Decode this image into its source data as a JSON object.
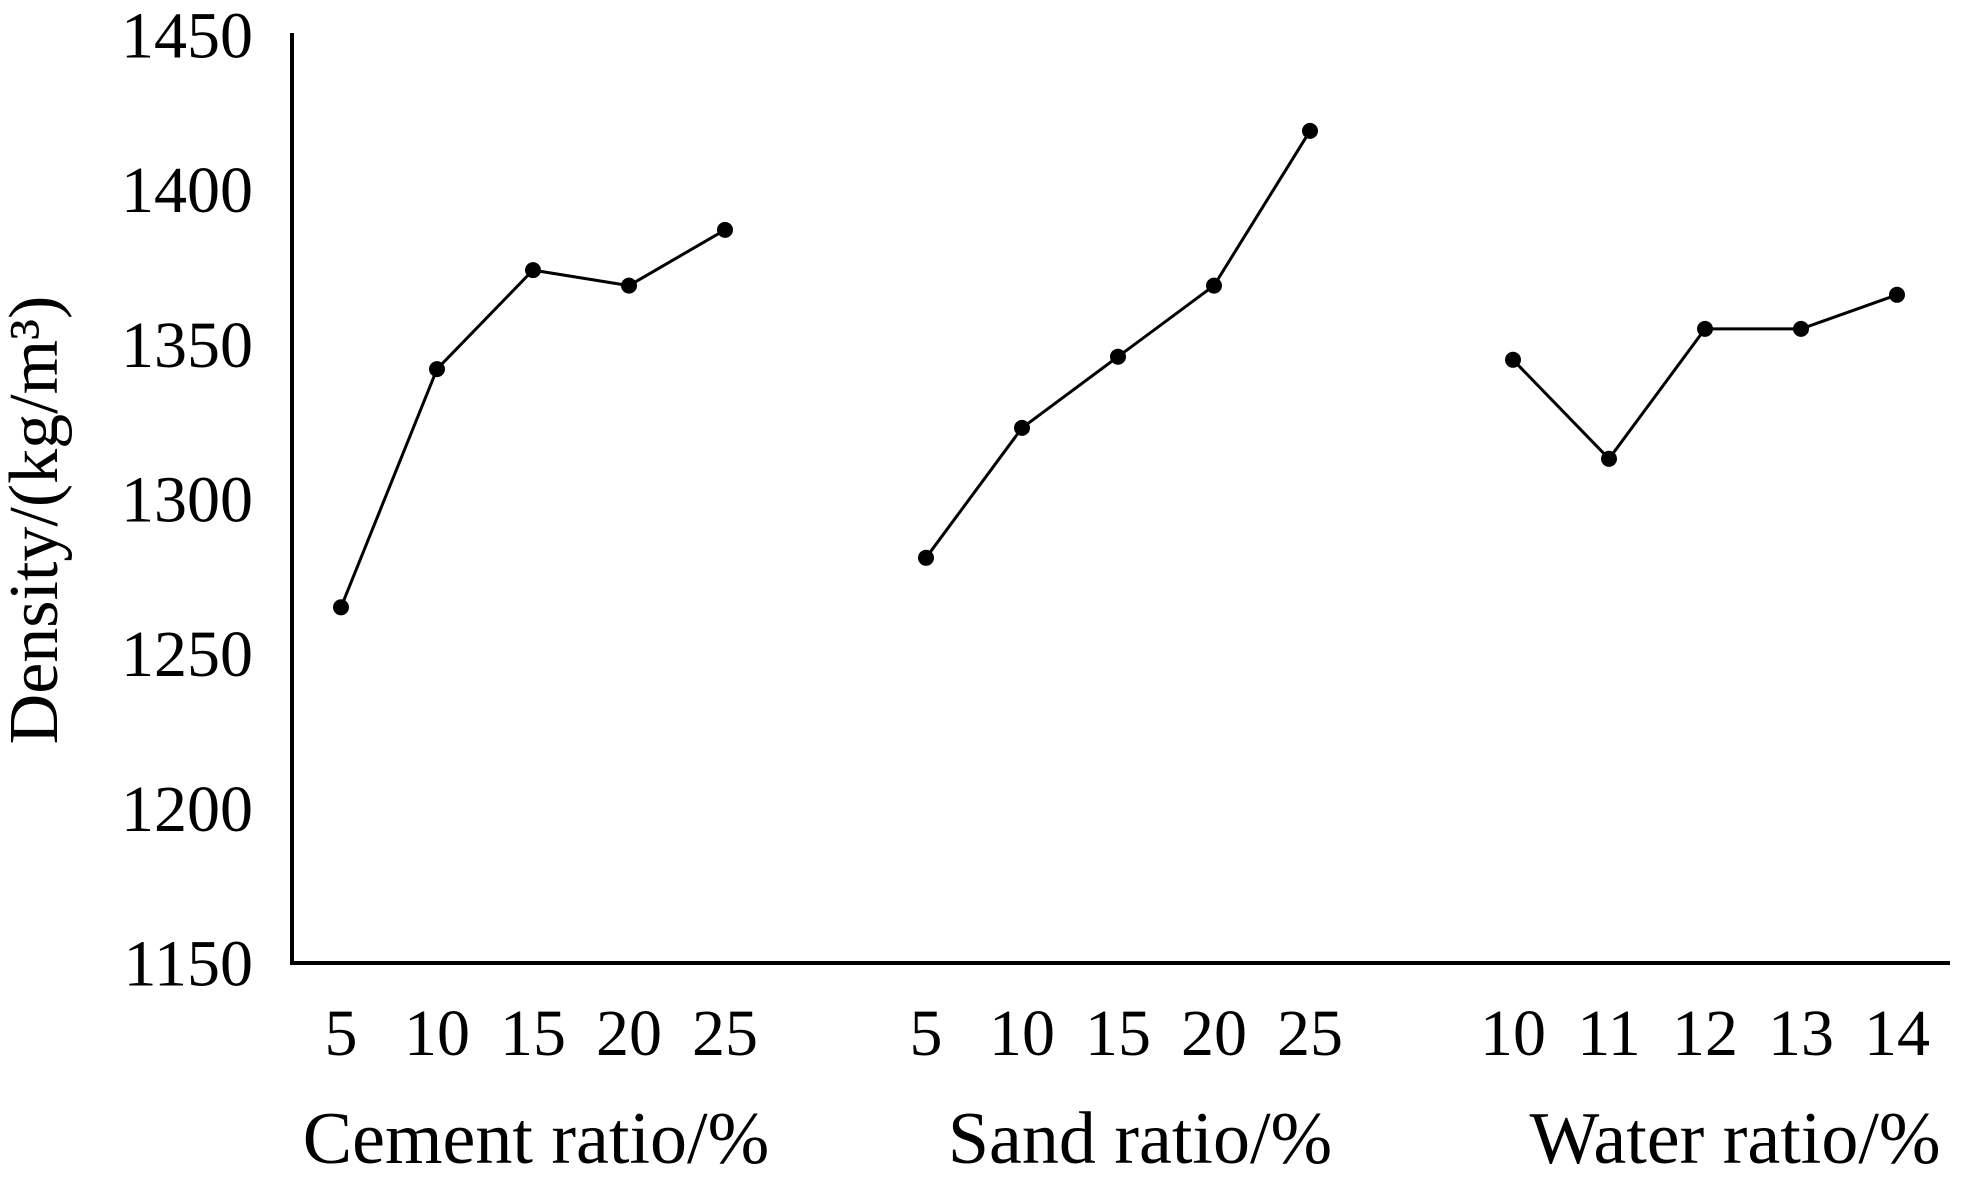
{
  "figure": {
    "background": "#ffffff",
    "ink_color": "#000000"
  },
  "chart_data": {
    "type": "line",
    "title": "",
    "ylabel": "Density/(kg/m³)",
    "ylim": [
      1150,
      1450
    ],
    "ytick_step": 50,
    "yticks": [
      1150,
      1200,
      1250,
      1300,
      1350,
      1400,
      1450
    ],
    "grid": false,
    "legend": "none",
    "marker": "filled-circle",
    "marker_color": "#000000",
    "line_color": "#000000",
    "axis_color": "#000000",
    "groups": [
      {
        "xlabel": "Cement ratio/%",
        "categories": [
          "5",
          "10",
          "15",
          "20",
          "25"
        ],
        "values": [
          1265,
          1342,
          1374,
          1369,
          1387
        ]
      },
      {
        "xlabel": "Sand ratio/%",
        "categories": [
          "5",
          "10",
          "15",
          "20",
          "25"
        ],
        "values": [
          1281,
          1323,
          1346,
          1369,
          1419
        ]
      },
      {
        "xlabel": "Water ratio/%",
        "categories": [
          "10",
          "11",
          "12",
          "13",
          "14"
        ],
        "values": [
          1345,
          1313,
          1355,
          1355,
          1366
        ]
      }
    ]
  }
}
